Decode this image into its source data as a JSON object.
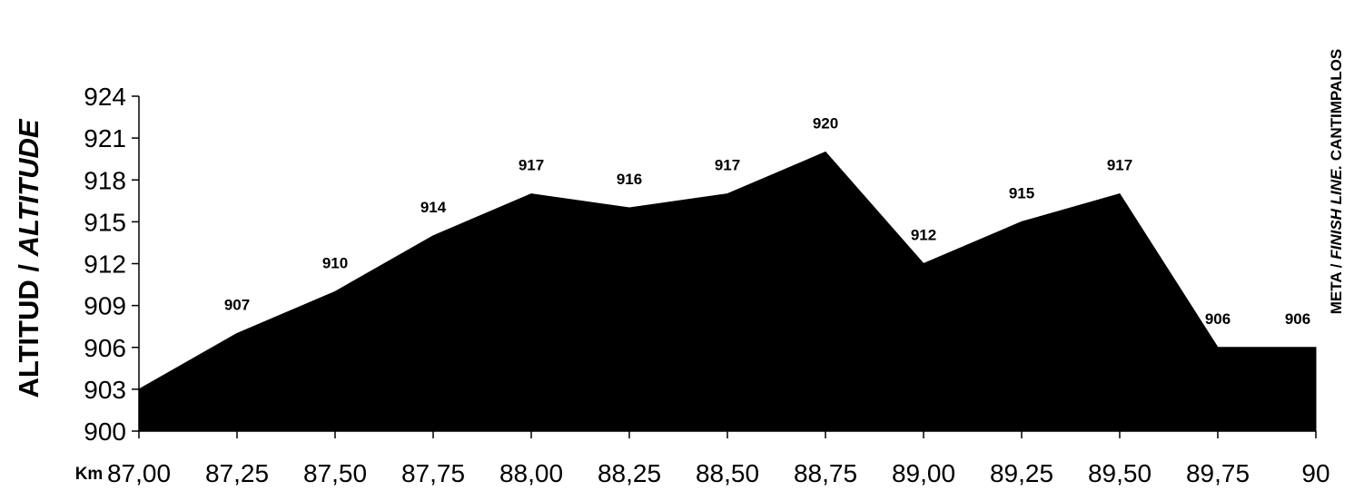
{
  "chart_data": {
    "type": "area",
    "x": [
      87.0,
      87.25,
      87.5,
      87.75,
      88.0,
      88.25,
      88.5,
      88.75,
      89.0,
      89.25,
      89.5,
      89.75,
      90.0
    ],
    "x_tick_labels": [
      "87,00",
      "87,25",
      "87,50",
      "87,75",
      "88,00",
      "88,25",
      "88,50",
      "88,75",
      "89,00",
      "89,25",
      "89,50",
      "89,75",
      "90"
    ],
    "values": [
      903,
      907,
      910,
      914,
      917,
      916,
      917,
      920,
      912,
      915,
      917,
      906,
      906
    ],
    "data_labels": [
      "",
      "907",
      "910",
      "914",
      "917",
      "916",
      "917",
      "920",
      "912",
      "915",
      "917",
      "906",
      "906"
    ],
    "y_ticks": [
      "900",
      "903",
      "906",
      "909",
      "912",
      "915",
      "918",
      "921",
      "924"
    ],
    "ylim": [
      900,
      924
    ],
    "xlim": [
      87.0,
      90.0
    ],
    "ylabel_upright": "ALTITUD / ",
    "ylabel_italic": "ALTITUDE",
    "xlabel": "Km",
    "annotation": {
      "part1": "META / ",
      "part2_italic": "FINISH LINE.",
      "part3": " CANTIMPALOS"
    },
    "fill_color": "#000000",
    "grid": false
  }
}
